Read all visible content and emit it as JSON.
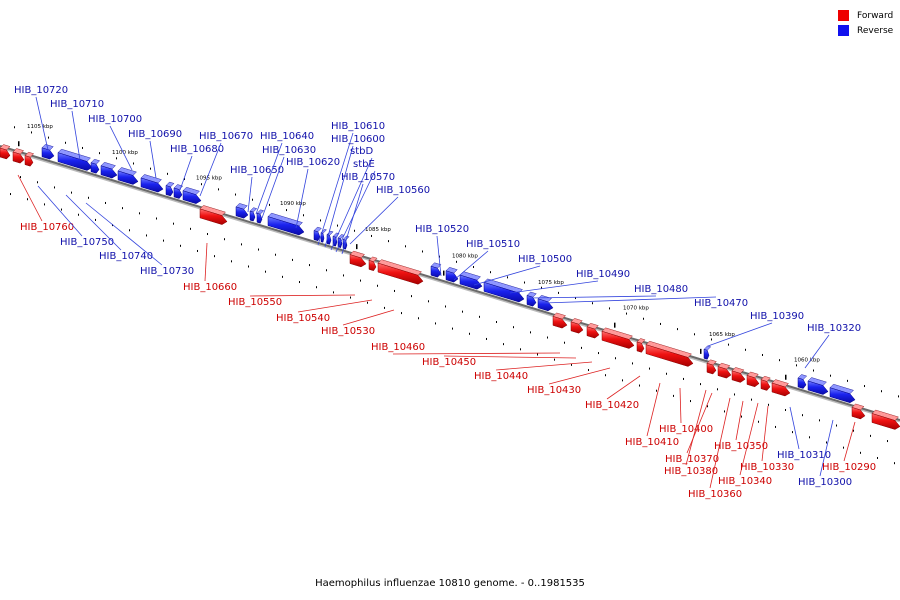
{
  "legend": {
    "forward": {
      "label": "Forward",
      "color": "#ee0000"
    },
    "reverse": {
      "label": "Reverse",
      "color": "#1111ee"
    }
  },
  "caption": "Haemophilus influenzae 10810 genome. - 0..1981535",
  "ticks": [
    "1105 kbp",
    "1100 kbp",
    "1095 kbp",
    "1090 kbp",
    "1085 kbp",
    "1080 kbp",
    "1075 kbp",
    "1070 kbp",
    "1065 kbp",
    "1060 kbp"
  ],
  "labels": {
    "HIB_10720": "HIB_10720",
    "HIB_10710": "HIB_10710",
    "HIB_10700": "HIB_10700",
    "HIB_10690": "HIB_10690",
    "HIB_10680": "HIB_10680",
    "HIB_10670": "HIB_10670",
    "HIB_10640": "HIB_10640",
    "HIB_10630": "HIB_10630",
    "HIB_10620": "HIB_10620",
    "HIB_10650": "HIB_10650",
    "HIB_10610": "HIB_10610",
    "HIB_10600": "HIB_10600",
    "stbD": "stbD",
    "stbE": "stbE",
    "HIB_10570": "HIB_10570",
    "HIB_10560": "HIB_10560",
    "HIB_10520": "HIB_10520",
    "HIB_10510": "HIB_10510",
    "HIB_10500": "HIB_10500",
    "HIB_10490": "HIB_10490",
    "HIB_10480": "HIB_10480",
    "HIB_10470": "HIB_10470",
    "HIB_10390": "HIB_10390",
    "HIB_10320": "HIB_10320",
    "HIB_10760": "HIB_10760",
    "HIB_10750": "HIB_10750",
    "HIB_10740": "HIB_10740",
    "HIB_10730": "HIB_10730",
    "HIB_10660": "HIB_10660",
    "HIB_10550": "HIB_10550",
    "HIB_10540": "HIB_10540",
    "HIB_10530": "HIB_10530",
    "HIB_10460": "HIB_10460",
    "HIB_10450": "HIB_10450",
    "HIB_10440": "HIB_10440",
    "HIB_10430": "HIB_10430",
    "HIB_10420": "HIB_10420",
    "HIB_10400": "HIB_10400",
    "HIB_10410": "HIB_10410",
    "HIB_10370": "HIB_10370",
    "HIB_10380": "HIB_10380",
    "HIB_10360": "HIB_10360",
    "HIB_10350": "HIB_10350",
    "HIB_10340": "HIB_10340",
    "HIB_10330": "HIB_10330",
    "HIB_10310": "HIB_10310",
    "HIB_10300": "HIB_10300",
    "HIB_10290": "HIB_10290"
  }
}
